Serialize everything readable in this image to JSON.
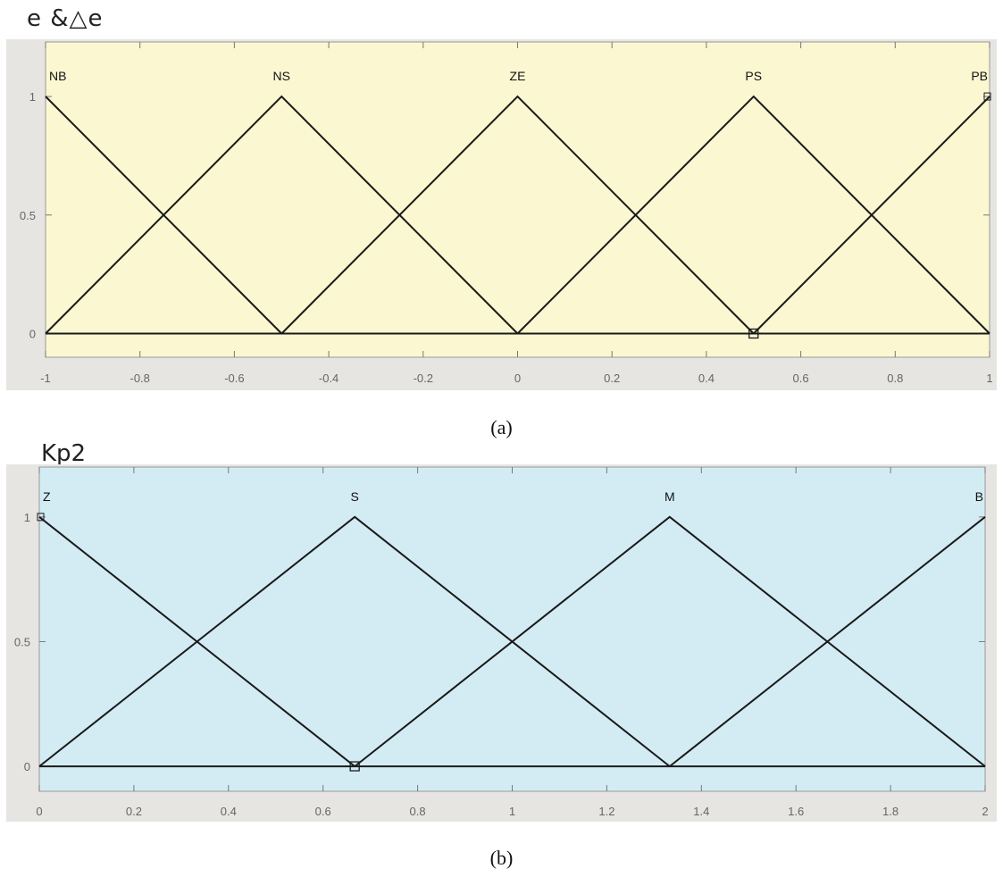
{
  "figure": {
    "panel_a_title": "e &△e",
    "panel_b_title": "Kp2",
    "caption_a": "(a)",
    "caption_b": "(b)",
    "colors": {
      "panel_a_bg": "#fbf7d1",
      "panel_b_bg": "#d3ecf4",
      "frame_bg": "#e6e5e2",
      "line": "#1a1a1a"
    }
  },
  "chart_data": [
    {
      "type": "line",
      "title": "",
      "xlabel": "",
      "ylabel": "",
      "xlim": [
        -1,
        1
      ],
      "ylim": [
        0,
        1
      ],
      "x_ticks": [
        -1,
        -0.8,
        -0.6,
        -0.4,
        -0.2,
        0,
        0.2,
        0.4,
        0.6,
        0.8,
        1
      ],
      "y_ticks": [
        0,
        0.5,
        1
      ],
      "series": [
        {
          "name": "NB",
          "points": [
            [
              -1,
              1
            ],
            [
              -0.5,
              0
            ]
          ]
        },
        {
          "name": "NS",
          "points": [
            [
              -1,
              0
            ],
            [
              -0.5,
              1
            ],
            [
              0,
              0
            ]
          ]
        },
        {
          "name": "ZE",
          "points": [
            [
              -0.5,
              0
            ],
            [
              0,
              1
            ],
            [
              0.5,
              0
            ]
          ]
        },
        {
          "name": "PS",
          "points": [
            [
              0,
              0
            ],
            [
              0.5,
              1
            ],
            [
              1,
              0
            ]
          ]
        },
        {
          "name": "PB",
          "points": [
            [
              0.5,
              0
            ],
            [
              1,
              1
            ]
          ]
        }
      ],
      "peaks": [
        -1,
        -0.5,
        0,
        0.5,
        1
      ],
      "grid": false
    },
    {
      "type": "line",
      "title": "",
      "xlabel": "",
      "ylabel": "",
      "xlim": [
        0,
        2
      ],
      "ylim": [
        0,
        1
      ],
      "x_ticks": [
        0,
        0.2,
        0.4,
        0.6,
        0.8,
        1,
        1.2,
        1.4,
        1.6,
        1.8,
        2
      ],
      "y_ticks": [
        0,
        0.5,
        1
      ],
      "series": [
        {
          "name": "Z",
          "points": [
            [
              0,
              1
            ],
            [
              0.667,
              0
            ]
          ]
        },
        {
          "name": "S",
          "points": [
            [
              0,
              0
            ],
            [
              0.667,
              1
            ],
            [
              1.333,
              0
            ]
          ]
        },
        {
          "name": "M",
          "points": [
            [
              0.667,
              0
            ],
            [
              1.333,
              1
            ],
            [
              2,
              0
            ]
          ]
        },
        {
          "name": "B",
          "points": [
            [
              1.333,
              0
            ],
            [
              2,
              1
            ]
          ]
        }
      ],
      "peaks": [
        0,
        0.667,
        1.333,
        2
      ],
      "grid": false
    }
  ]
}
